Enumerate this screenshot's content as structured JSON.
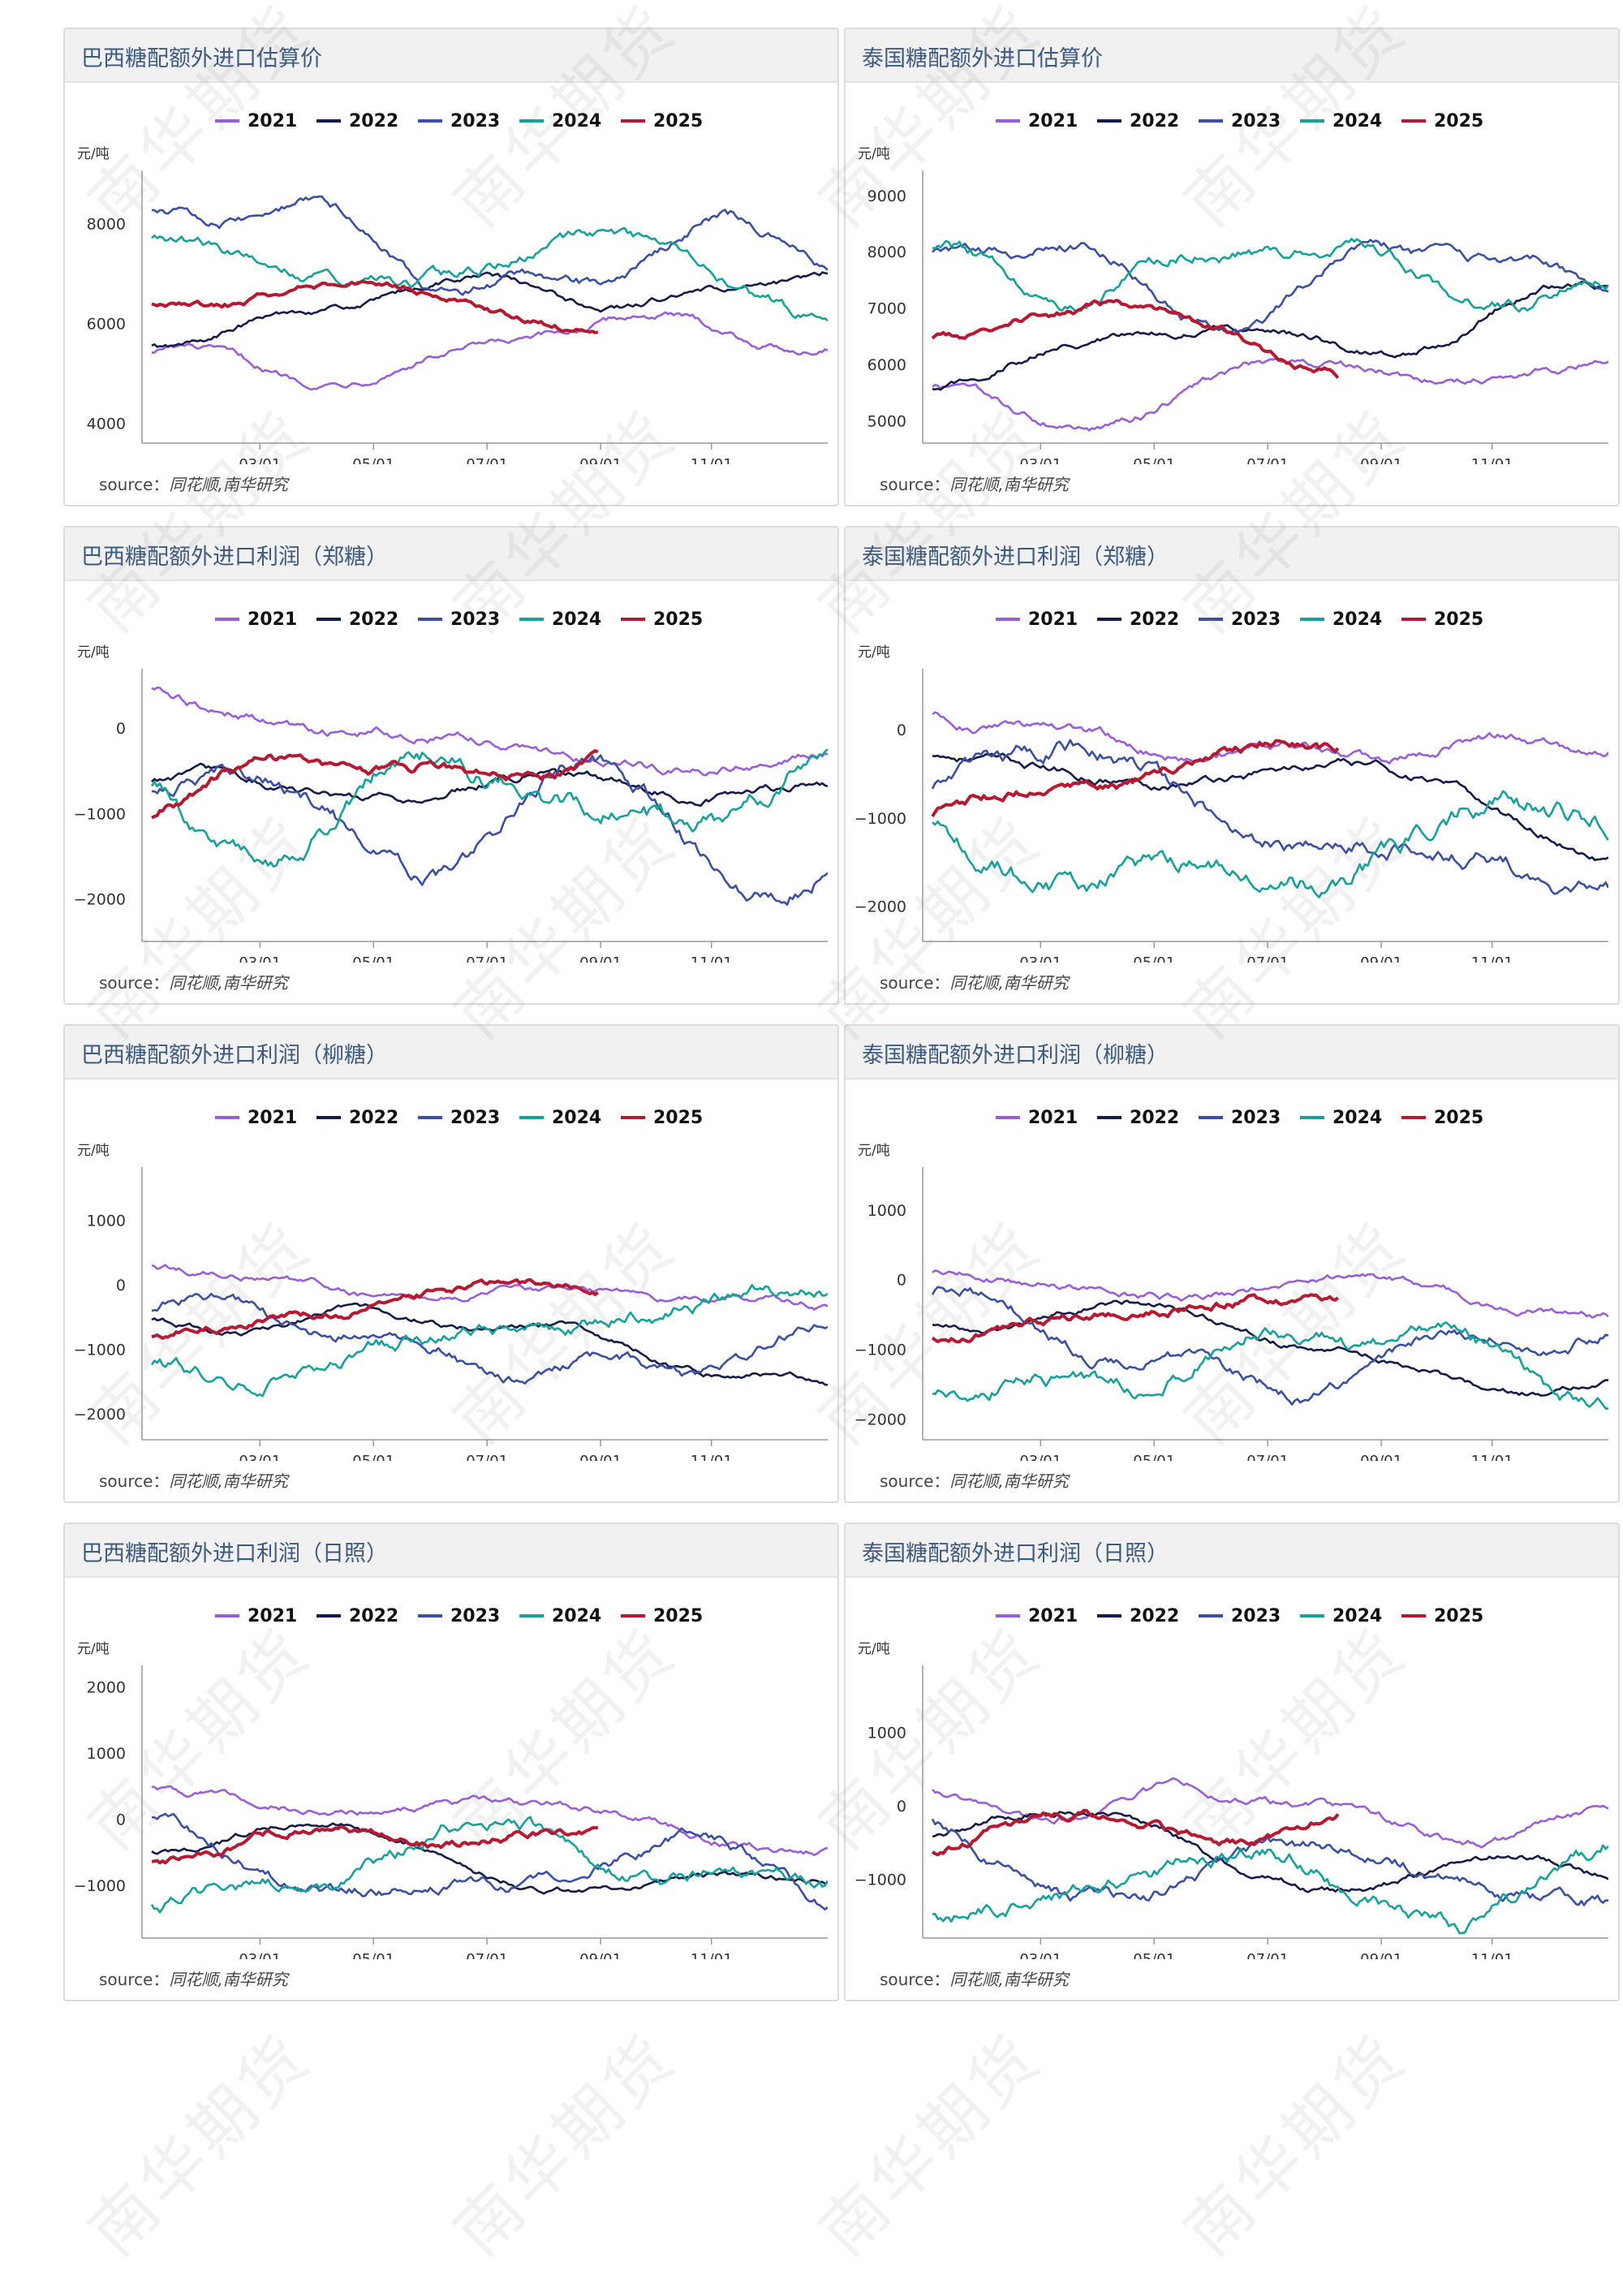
{
  "common": {
    "legend": [
      "2021",
      "2022",
      "2023",
      "2024",
      "2025"
    ],
    "colors": [
      "#9a5fd6",
      "#161c4a",
      "#3b4fa3",
      "#17a19a",
      "#b51a32"
    ],
    "x_ticks": [
      "03/01",
      "05/01",
      "07/01",
      "09/01",
      "11/01"
    ],
    "unit": "元/吨",
    "source_label": "source：",
    "source_value": "同花顺,南华研究",
    "watermark": "南华期货"
  },
  "chart_data": [
    {
      "type": "line",
      "title": "巴西糖配额外进口估算价",
      "ylabel": "元/吨",
      "y_ticks": [
        4000,
        6000,
        8000
      ],
      "ylim": [
        3600,
        8900
      ],
      "base": [
        5000,
        6000,
        7800,
        7500,
        6700
      ],
      "end": [
        6000,
        7000,
        7000,
        6800,
        5800
      ],
      "amp": [
        450,
        450,
        900,
        650,
        400
      ],
      "vol": [
        90,
        80,
        130,
        150,
        90
      ],
      "last_day": 165
    },
    {
      "type": "line",
      "title": "泰国糖配额外进口估算价",
      "ylabel": "元/吨",
      "y_ticks": [
        5000,
        6000,
        7000,
        8000,
        9000
      ],
      "ylim": [
        4600,
        9300
      ],
      "base": [
        5100,
        6000,
        7600,
        7900,
        6900
      ],
      "end": [
        6200,
        7000,
        7500,
        7500,
        5800
      ],
      "amp": [
        450,
        450,
        800,
        550,
        400
      ],
      "vol": [
        90,
        80,
        120,
        150,
        90
      ],
      "last_day": 150
    },
    {
      "type": "line",
      "title": "巴西糖配额外进口利润（郑糖）",
      "ylabel": "元/吨",
      "y_ticks": [
        -2000,
        -1000,
        0
      ],
      "ylim": [
        -2500,
        600
      ],
      "base": [
        200,
        -300,
        -900,
        -900,
        -800
      ],
      "end": [
        -300,
        -1100,
        -1300,
        -700,
        0
      ],
      "amp": [
        280,
        400,
        700,
        600,
        300
      ],
      "vol": [
        70,
        60,
        120,
        150,
        80
      ],
      "last_day": 165
    },
    {
      "type": "line",
      "title": "泰国糖配额外进口利润（郑糖）",
      "ylabel": "元/吨",
      "y_ticks": [
        -2000,
        -1000,
        0
      ],
      "ylim": [
        -2400,
        600
      ],
      "base": [
        100,
        -100,
        -900,
        -1100,
        -900
      ],
      "end": [
        -300,
        -1300,
        -1100,
        -1300,
        -100
      ],
      "amp": [
        250,
        400,
        700,
        600,
        300
      ],
      "vol": [
        70,
        60,
        120,
        150,
        80
      ],
      "last_day": 150
    },
    {
      "type": "line",
      "title": "巴西糖配额外进口利润（柳糖）",
      "ylabel": "元/吨",
      "y_ticks": [
        -2000,
        -1000,
        0,
        1000
      ],
      "ylim": [
        -2400,
        1700
      ],
      "base": [
        300,
        -400,
        -800,
        -900,
        -800
      ],
      "end": [
        -500,
        -1300,
        -1000,
        -600,
        200
      ],
      "amp": [
        250,
        350,
        550,
        550,
        300
      ],
      "vol": [
        70,
        60,
        110,
        140,
        80
      ],
      "last_day": 165
    },
    {
      "type": "line",
      "title": "泰国糖配额外进口利润（柳糖）",
      "ylabel": "元/吨",
      "y_ticks": [
        -2000,
        -1000,
        0,
        1000
      ],
      "ylim": [
        -2300,
        1500
      ],
      "base": [
        100,
        -400,
        -800,
        -1100,
        -900
      ],
      "end": [
        -400,
        -1400,
        -1200,
        -1300,
        100
      ],
      "amp": [
        250,
        350,
        600,
        600,
        300
      ],
      "vol": [
        70,
        60,
        110,
        140,
        80
      ],
      "last_day": 150
    },
    {
      "type": "line",
      "title": "巴西糖配额外进口利润（日照）",
      "ylabel": "元/吨",
      "y_ticks": [
        -1000,
        0,
        1000,
        2000
      ],
      "ylim": [
        -1800,
        2200
      ],
      "base": [
        500,
        -200,
        -600,
        -800,
        -700
      ],
      "end": [
        -300,
        -1100,
        -1000,
        -500,
        400
      ],
      "amp": [
        250,
        350,
        550,
        600,
        300
      ],
      "vol": [
        70,
        60,
        110,
        140,
        80
      ],
      "last_day": 165
    },
    {
      "type": "line",
      "title": "泰国糖配额外进口利润（日照）",
      "ylabel": "元/吨",
      "y_ticks": [
        -1000,
        0,
        1000
      ],
      "ylim": [
        -1800,
        1800
      ],
      "base": [
        200,
        -200,
        -700,
        -1200,
        -600
      ],
      "end": [
        -300,
        -1200,
        -1100,
        -1000,
        300
      ],
      "amp": [
        250,
        350,
        550,
        550,
        300
      ],
      "vol": [
        70,
        60,
        110,
        140,
        80
      ],
      "last_day": 150
    }
  ]
}
